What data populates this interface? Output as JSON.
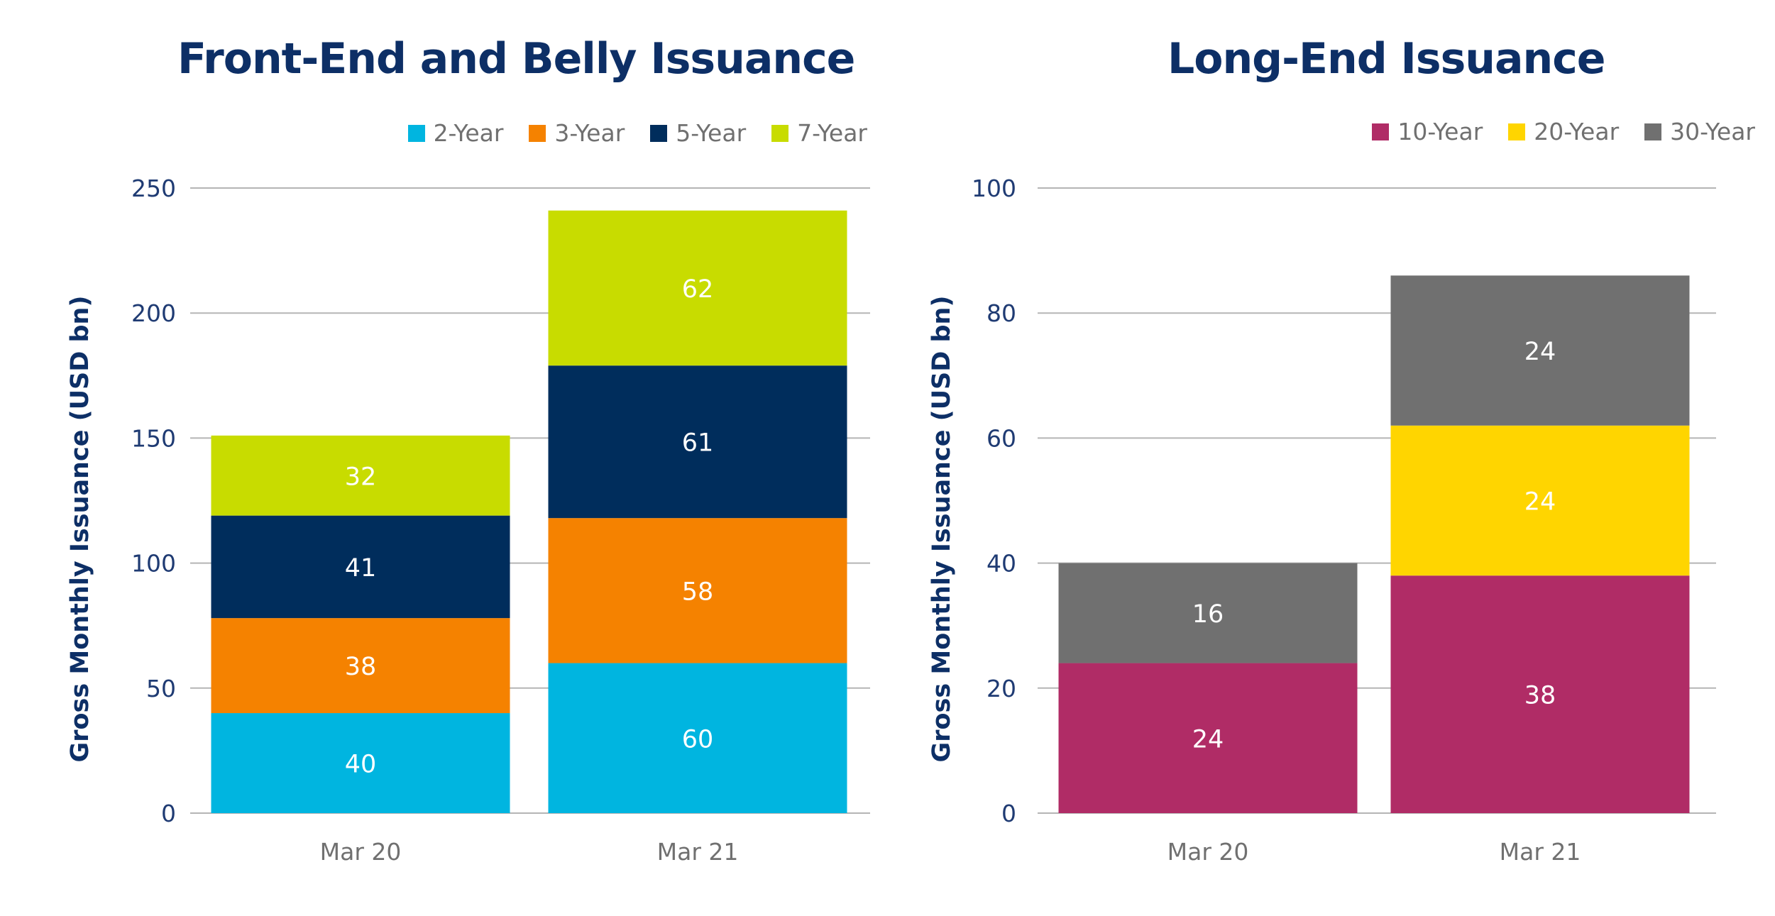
{
  "chart_data": [
    {
      "type": "bar",
      "stacked": true,
      "title": "Front-End and Belly Issuance",
      "ylabel": "Gross Monthly Issuance (USD bn)",
      "xlabel": "",
      "categories": [
        "Mar 20",
        "Mar 21"
      ],
      "ylim": [
        0,
        250
      ],
      "yticks": [
        0,
        50,
        100,
        150,
        200,
        250
      ],
      "grid": true,
      "legend_position": "top-right",
      "series": [
        {
          "name": "2-Year",
          "color": "#00b5e0",
          "values": [
            40,
            60
          ]
        },
        {
          "name": "3-Year",
          "color": "#f58200",
          "values": [
            38,
            58
          ]
        },
        {
          "name": "5-Year",
          "color": "#002d5c",
          "values": [
            41,
            61
          ]
        },
        {
          "name": "7-Year",
          "color": "#c8dc00",
          "values": [
            32,
            62
          ]
        }
      ]
    },
    {
      "type": "bar",
      "stacked": true,
      "title": "Long-End Issuance",
      "ylabel": "Gross Monthly Issuance (USD bn)",
      "xlabel": "",
      "categories": [
        "Mar 20",
        "Mar 21"
      ],
      "ylim": [
        0,
        100
      ],
      "yticks": [
        0,
        20,
        40,
        60,
        80,
        100
      ],
      "grid": true,
      "legend_position": "top-right",
      "series": [
        {
          "name": "10-Year",
          "color": "#b02c66",
          "values": [
            24,
            38
          ]
        },
        {
          "name": "20-Year",
          "color": "#ffd500",
          "values": [
            0,
            24
          ]
        },
        {
          "name": "30-Year",
          "color": "#707070",
          "values": [
            16,
            24
          ]
        }
      ]
    }
  ]
}
